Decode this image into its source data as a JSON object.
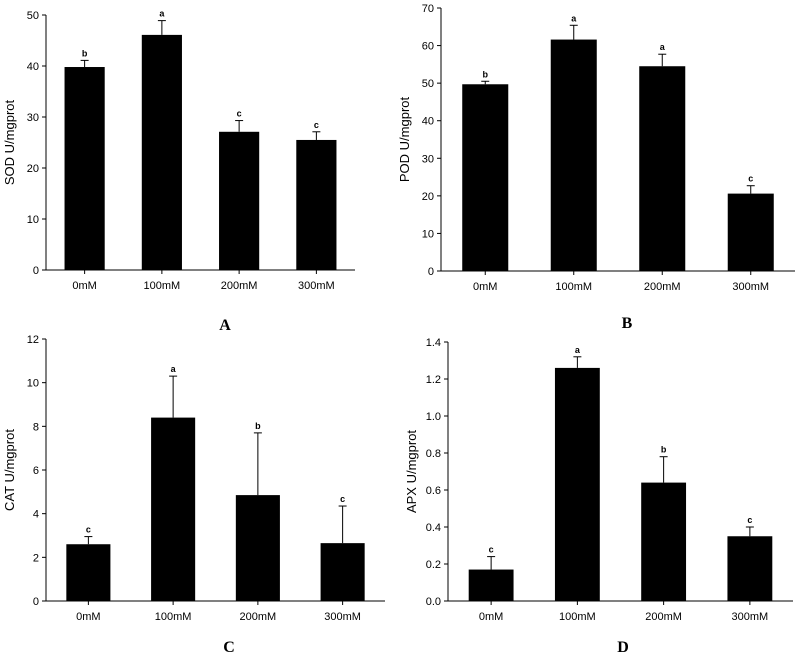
{
  "colors": {
    "bar": "#000000",
    "axis": "#000000",
    "background": "#ffffff"
  },
  "chart_data": [
    {
      "panel": "A",
      "type": "bar",
      "categories": [
        "0mM",
        "100mM",
        "200mM",
        "300mM"
      ],
      "values": [
        39.8,
        46.1,
        27.1,
        25.5
      ],
      "errors": [
        1.3,
        2.8,
        2.2,
        1.6
      ],
      "significance": [
        "b",
        "a",
        "c",
        "c"
      ],
      "ylabel": "SOD U/mgprot",
      "xlabel": "",
      "ylim": [
        0,
        50
      ],
      "yticks": [
        0,
        10,
        20,
        30,
        40,
        50
      ],
      "ytick_labels": [
        "0",
        "10",
        "20",
        "30",
        "40",
        "50"
      ]
    },
    {
      "panel": "B",
      "type": "bar",
      "categories": [
        "0mM",
        "100mM",
        "200mM",
        "300mM"
      ],
      "values": [
        49.7,
        61.6,
        54.5,
        20.6
      ],
      "errors": [
        0.8,
        3.8,
        3.2,
        2.1
      ],
      "significance": [
        "b",
        "a",
        "a",
        "c"
      ],
      "ylabel": "POD U/mgprot",
      "xlabel": "",
      "ylim": [
        0,
        70
      ],
      "yticks": [
        0,
        10,
        20,
        30,
        40,
        50,
        60,
        70
      ],
      "ytick_labels": [
        "0",
        "10",
        "20",
        "30",
        "40",
        "50",
        "60",
        "70"
      ]
    },
    {
      "panel": "C",
      "type": "bar",
      "categories": [
        "0mM",
        "100mM",
        "200mM",
        "300mM"
      ],
      "values": [
        2.6,
        8.4,
        4.85,
        2.65
      ],
      "errors": [
        0.35,
        1.9,
        2.85,
        1.7
      ],
      "significance": [
        "c",
        "a",
        "b",
        "c"
      ],
      "ylabel": "CAT U/mgprot",
      "xlabel": "",
      "ylim": [
        0,
        12
      ],
      "yticks": [
        0,
        2,
        4,
        6,
        8,
        10,
        12
      ],
      "ytick_labels": [
        "0",
        "2",
        "4",
        "6",
        "8",
        "10",
        "12"
      ]
    },
    {
      "panel": "D",
      "type": "bar",
      "categories": [
        "0mM",
        "100mM",
        "200mM",
        "300mM"
      ],
      "values": [
        0.17,
        1.26,
        0.64,
        0.35
      ],
      "errors": [
        0.07,
        0.06,
        0.14,
        0.05
      ],
      "significance": [
        "c",
        "a",
        "b",
        "c"
      ],
      "ylabel": "APX U/mgprot",
      "xlabel": "",
      "ylim": [
        0,
        1.4
      ],
      "yticks": [
        0,
        0.2,
        0.4,
        0.6,
        0.8,
        1.0,
        1.2,
        1.4
      ],
      "ytick_labels": [
        "0.0",
        "0.2",
        "0.4",
        "0.6",
        "0.8",
        "1.0",
        "1.2",
        "1.4"
      ]
    }
  ]
}
